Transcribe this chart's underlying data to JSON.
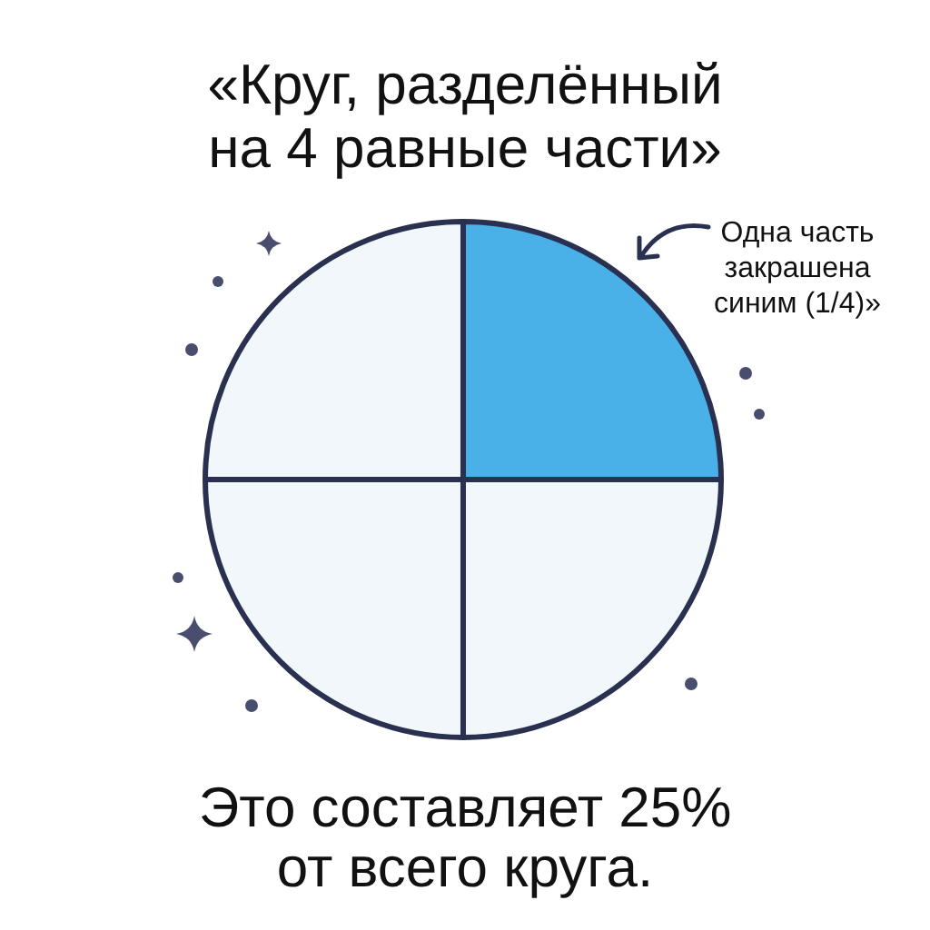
{
  "chart_data": {
    "type": "pie",
    "title": "«Круг, разделённый на 4 равные части»",
    "categories": [
      null,
      null,
      null,
      null
    ],
    "values": [
      25,
      25,
      25,
      25
    ],
    "colors": [
      "#4ab0e8",
      "#f2f7fc",
      "#f2f7fc",
      "#f2f7fc"
    ],
    "annotations": [
      "Одна часть закрашена синим (1/4)»",
      "Это составляет 25% от всего круга."
    ]
  }
}
